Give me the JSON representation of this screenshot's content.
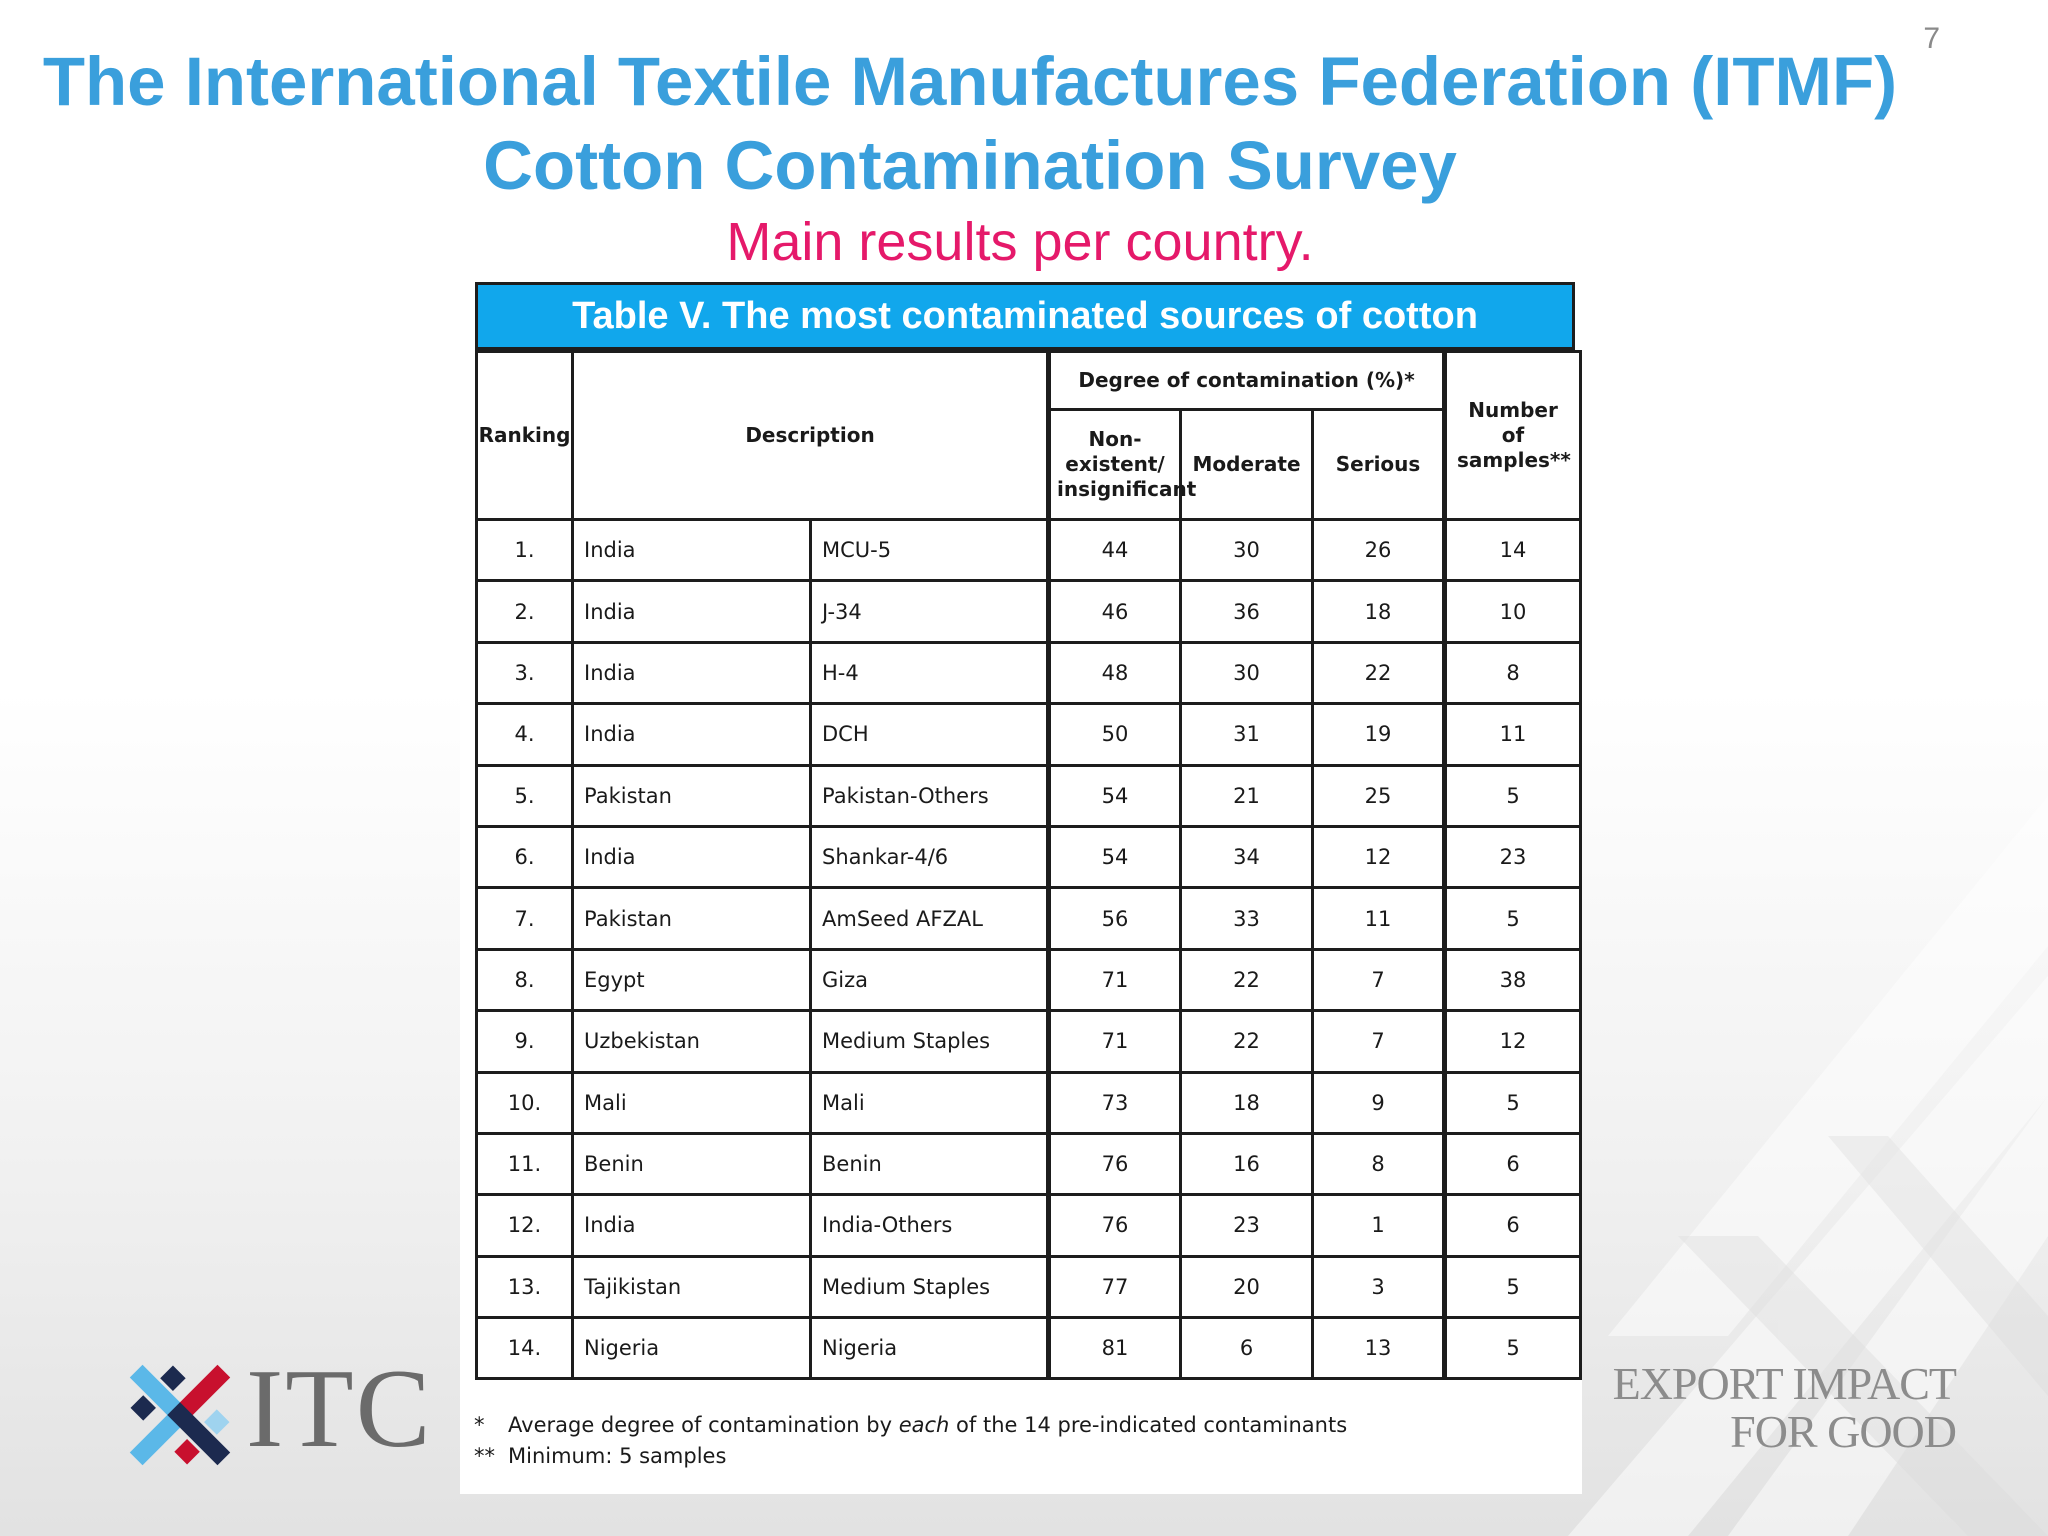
{
  "slide": {
    "number": "7",
    "title_line1": "The International Textile Manufactures Federation (ITMF)",
    "title_line2": "Cotton Contamination Survey",
    "subtitle": "Main results per country."
  },
  "table": {
    "caption": "Table V. The most contaminated sources of cotton",
    "headers": {
      "ranking": "Ranking",
      "description": "Description",
      "degree_group": "Degree of contamination (%)*",
      "non_existent": "Non-existent/ insignificant",
      "moderate": "Moderate",
      "serious": "Serious",
      "samples": "Number of samples**"
    },
    "rows": [
      {
        "rank": "1.",
        "country": "India",
        "variety": "MCU-5",
        "non": "44",
        "moderate": "30",
        "serious": "26",
        "samples": "14"
      },
      {
        "rank": "2.",
        "country": "India",
        "variety": "J-34",
        "non": "46",
        "moderate": "36",
        "serious": "18",
        "samples": "10"
      },
      {
        "rank": "3.",
        "country": "India",
        "variety": "H-4",
        "non": "48",
        "moderate": "30",
        "serious": "22",
        "samples": "8"
      },
      {
        "rank": "4.",
        "country": "India",
        "variety": "DCH",
        "non": "50",
        "moderate": "31",
        "serious": "19",
        "samples": "11"
      },
      {
        "rank": "5.",
        "country": "Pakistan",
        "variety": "Pakistan-Others",
        "non": "54",
        "moderate": "21",
        "serious": "25",
        "samples": "5"
      },
      {
        "rank": "6.",
        "country": "India",
        "variety": "Shankar-4/6",
        "non": "54",
        "moderate": "34",
        "serious": "12",
        "samples": "23"
      },
      {
        "rank": "7.",
        "country": "Pakistan",
        "variety": "AmSeed AFZAL",
        "non": "56",
        "moderate": "33",
        "serious": "11",
        "samples": "5"
      },
      {
        "rank": "8.",
        "country": "Egypt",
        "variety": "Giza",
        "non": "71",
        "moderate": "22",
        "serious": "7",
        "samples": "38"
      },
      {
        "rank": "9.",
        "country": "Uzbekistan",
        "variety": "Medium Staples",
        "non": "71",
        "moderate": "22",
        "serious": "7",
        "samples": "12"
      },
      {
        "rank": "10.",
        "country": "Mali",
        "variety": "Mali",
        "non": "73",
        "moderate": "18",
        "serious": "9",
        "samples": "5"
      },
      {
        "rank": "11.",
        "country": "Benin",
        "variety": "Benin",
        "non": "76",
        "moderate": "16",
        "serious": "8",
        "samples": "6"
      },
      {
        "rank": "12.",
        "country": "India",
        "variety": "India-Others",
        "non": "76",
        "moderate": "23",
        "serious": "1",
        "samples": "6"
      },
      {
        "rank": "13.",
        "country": "Tajikistan",
        "variety": "Medium Staples",
        "non": "77",
        "moderate": "20",
        "serious": "3",
        "samples": "5"
      },
      {
        "rank": "14.",
        "country": "Nigeria",
        "variety": "Nigeria",
        "non": "81",
        "moderate": "6",
        "serious": "13",
        "samples": "5"
      }
    ],
    "footnotes": [
      {
        "mark": "*",
        "pre": "Average degree of contamination by ",
        "em": "each",
        "post": " of the 14 pre-indicated contaminants"
      },
      {
        "mark": "**",
        "pre": "Minimum: 5 samples",
        "em": "",
        "post": ""
      }
    ]
  },
  "branding": {
    "logo_text": "ITC",
    "slogan_line1": "EXPORT IMPACT",
    "slogan_line2": "FOR GOOD",
    "colors": {
      "blue": "#3a9fdc",
      "pink": "#e5196a",
      "caption": "#11a7ec",
      "navy": "#1c2a4f",
      "red": "#c8102e",
      "lightblue": "#5bb8e8"
    }
  }
}
